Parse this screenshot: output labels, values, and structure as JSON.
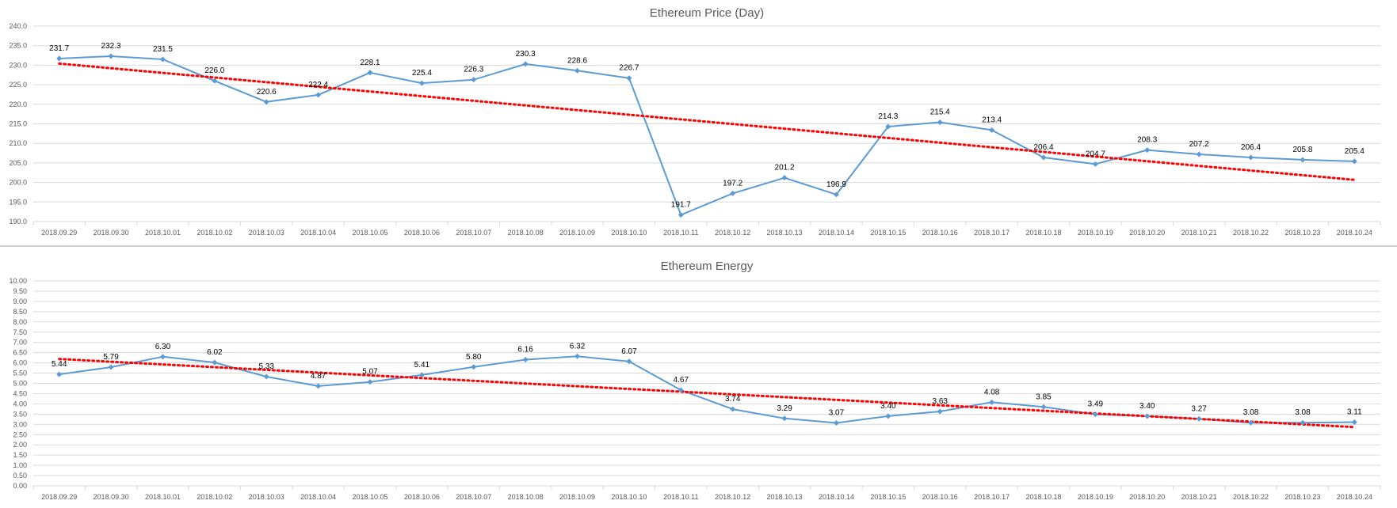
{
  "charts": [
    {
      "type": "line",
      "title": "Ethereum Price (Day)",
      "categories": [
        "2018.09.29",
        "2018.09.30",
        "2018.10.01",
        "2018.10.02",
        "2018.10.03",
        "2018.10.04",
        "2018.10.05",
        "2018.10.06",
        "2018.10.07",
        "2018.10.08",
        "2018.10.09",
        "2018.10.10",
        "2018.10.11",
        "2018.10.12",
        "2018.10.13",
        "2018.10.14",
        "2018.10.15",
        "2018.10.16",
        "2018.10.17",
        "2018.10.18",
        "2018.10.19",
        "2018.10.20",
        "2018.10.21",
        "2018.10.22",
        "2018.10.23",
        "2018.10.24"
      ],
      "values": [
        231.7,
        232.3,
        231.5,
        226.0,
        220.6,
        222.4,
        228.1,
        225.4,
        226.3,
        230.3,
        228.6,
        226.7,
        191.7,
        197.2,
        201.2,
        196.9,
        214.3,
        215.4,
        213.4,
        206.4,
        204.7,
        208.3,
        207.2,
        206.4,
        205.8,
        205.4
      ],
      "ylim": [
        190,
        240
      ],
      "yticks": [
        "190.0",
        "195.0",
        "200.0",
        "205.0",
        "210.0",
        "215.0",
        "220.0",
        "225.0",
        "230.0",
        "235.0",
        "240.0"
      ],
      "decimals": 1,
      "trendline": "linear",
      "grid": true,
      "colors": {
        "series": "#5b9bd5",
        "trend": "#ff0000",
        "grid": "#d9d9d9"
      }
    },
    {
      "type": "line",
      "title": "Ethereum Energy",
      "categories": [
        "2018.09.29",
        "2018.09.30",
        "2018.10.01",
        "2018.10.02",
        "2018.10.03",
        "2018.10.04",
        "2018.10.05",
        "2018.10.06",
        "2018.10.07",
        "2018.10.08",
        "2018.10.09",
        "2018.10.10",
        "2018.10.11",
        "2018.10.12",
        "2018.10.13",
        "2018.10.14",
        "2018.10.15",
        "2018.10.16",
        "2018.10.17",
        "2018.10.18",
        "2018.10.19",
        "2018.10.20",
        "2018.10.21",
        "2018.10.22",
        "2018.10.23",
        "2018.10.24"
      ],
      "values": [
        5.44,
        5.79,
        6.3,
        6.02,
        5.33,
        4.87,
        5.07,
        5.41,
        5.8,
        6.16,
        6.32,
        6.07,
        4.67,
        3.74,
        3.29,
        3.07,
        3.4,
        3.63,
        4.08,
        3.85,
        3.49,
        3.4,
        3.27,
        3.08,
        3.08,
        3.11
      ],
      "ylim": [
        0,
        10
      ],
      "yticks": [
        "0.00",
        "0.50",
        "1.00",
        "1.50",
        "2.00",
        "2.50",
        "3.00",
        "3.50",
        "4.00",
        "4.50",
        "5.00",
        "5.50",
        "6.00",
        "6.50",
        "7.00",
        "7.50",
        "8.00",
        "8.50",
        "9.00",
        "9.50",
        "10.00"
      ],
      "decimals": 2,
      "trendline": "linear",
      "grid": true,
      "colors": {
        "series": "#5b9bd5",
        "trend": "#ff0000",
        "grid": "#d9d9d9"
      }
    }
  ]
}
